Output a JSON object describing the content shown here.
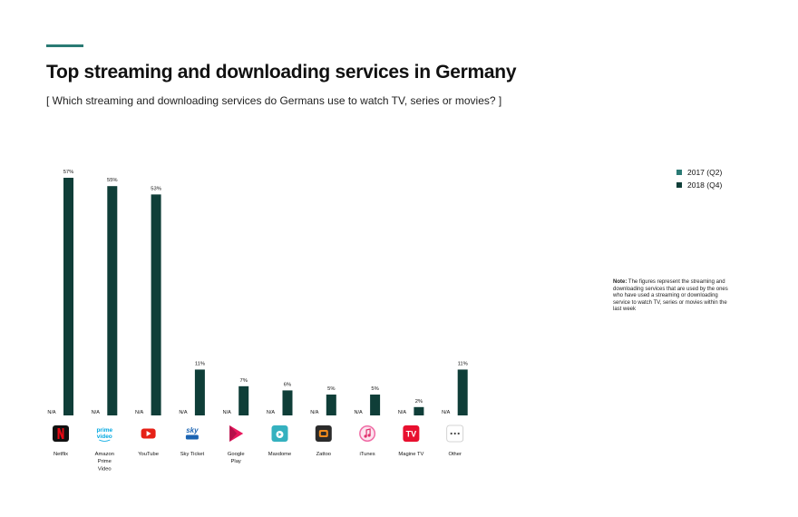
{
  "title": "Top streaming and downloading services in Germany",
  "subtitle": "[ Which streaming and downloading services do Germans use to watch TV, series or movies? ]",
  "note": {
    "label": "Note:",
    "text": "The figures represent the streaming and downloading services that are used by the ones who have used a streaming or downloading service to watch TV, series or movies within the last week"
  },
  "colors": {
    "series_2017": "#2a7a74",
    "series_2018": "#0f3e38",
    "accent": "#2a7a74"
  },
  "chart_data": {
    "type": "bar",
    "categories": [
      [
        "Netflix"
      ],
      [
        "Amazon",
        "Prime",
        "Video"
      ],
      [
        "YouTube"
      ],
      [
        "Sky Ticket"
      ],
      [
        "Google",
        "Play"
      ],
      [
        "Maxdome"
      ],
      [
        "Zattoo"
      ],
      [
        "iTunes"
      ],
      [
        "Magine TV"
      ],
      [
        "Other"
      ]
    ],
    "icons": [
      "netflix-logo-icon",
      "prime-video-logo-icon",
      "youtube-logo-icon",
      "sky-ticket-logo-icon",
      "google-play-logo-icon",
      "maxdome-logo-icon",
      "zattoo-logo-icon",
      "itunes-logo-icon",
      "magine-tv-logo-icon",
      "more-dots-icon"
    ],
    "series": [
      {
        "name": "2017 (Q2)",
        "values": [
          null,
          null,
          null,
          null,
          null,
          null,
          null,
          null,
          null,
          null
        ],
        "labels": [
          "N/A",
          "N/A",
          "N/A",
          "N/A",
          "N/A",
          "N/A",
          "N/A",
          "N/A",
          "N/A",
          "N/A"
        ]
      },
      {
        "name": "2018 (Q4)",
        "values": [
          57,
          55,
          53,
          11,
          7,
          6,
          5,
          5,
          2,
          11
        ],
        "labels": [
          "57%",
          "55%",
          "53%",
          "11%",
          "7%",
          "6%",
          "5%",
          "5%",
          "2%",
          "11%"
        ]
      }
    ],
    "ylim": [
      0,
      57
    ],
    "grid": false,
    "legend": "top-right"
  }
}
